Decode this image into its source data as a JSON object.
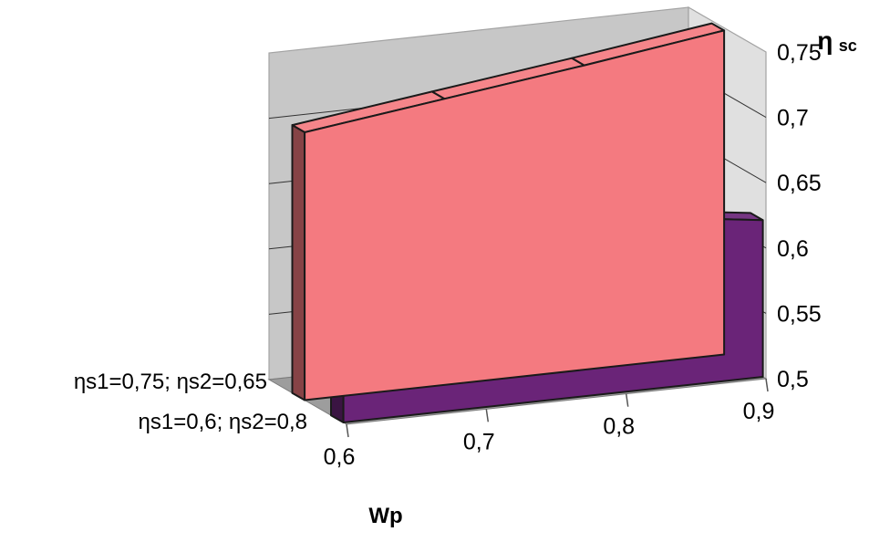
{
  "chart_data": {
    "type": "area",
    "view": "3d",
    "x_axis": {
      "title": "Wp",
      "range": [
        0.6,
        0.9
      ],
      "ticks": [
        {
          "value": 0.6,
          "label": "0,6"
        },
        {
          "value": 0.7,
          "label": "0,7"
        },
        {
          "value": 0.8,
          "label": "0,8"
        },
        {
          "value": 0.9,
          "label": "0,9"
        }
      ]
    },
    "y_axis": {
      "title": "η",
      "title_sub": "sc",
      "range": [
        0.5,
        0.75
      ],
      "ticks": [
        {
          "value": 0.5,
          "label": "0,5"
        },
        {
          "value": 0.55,
          "label": "0,55"
        },
        {
          "value": 0.6,
          "label": "0,6"
        },
        {
          "value": 0.65,
          "label": "0,65"
        },
        {
          "value": 0.7,
          "label": "0,7"
        },
        {
          "value": 0.75,
          "label": "0,75"
        }
      ]
    },
    "grid": true,
    "legend": "none",
    "series": [
      {
        "name": "ηs1=0,75; ηs2=0,65",
        "color": "#f47a80",
        "x": [
          0.6,
          0.7,
          0.8,
          0.9
        ],
        "values": [
          0.705,
          0.719,
          0.733,
          0.748
        ]
      },
      {
        "name": "ηs1=0,6; ηs2=0,8",
        "color": "#6a2478",
        "x": [
          0.6,
          0.7,
          0.8,
          0.9
        ],
        "values": [
          0.66,
          0.647,
          0.634,
          0.62
        ]
      }
    ]
  }
}
